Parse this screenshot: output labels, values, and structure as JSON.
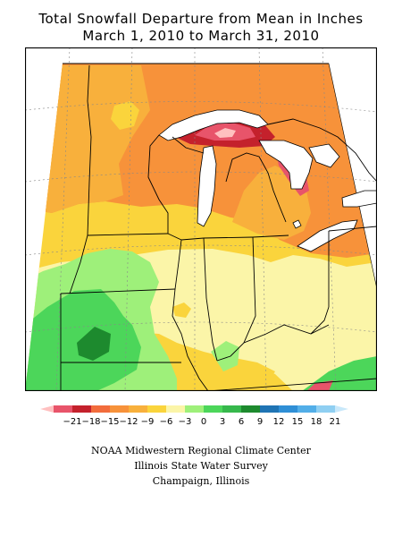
{
  "title": {
    "line1": "Total Snowfall Departure from Mean in Inches",
    "line2": "March 1, 2010 to March 31, 2010"
  },
  "legend": {
    "ticks": [
      "-21",
      "-18",
      "-15",
      "-12",
      "-9",
      "-6",
      "-3",
      "0",
      "3",
      "6",
      "9",
      "12",
      "15",
      "18",
      "21"
    ],
    "colors": [
      "#ffc0c0",
      "#e8546a",
      "#c4212c",
      "#f26c3c",
      "#f7923a",
      "#f8b03c",
      "#fad43c",
      "#fbf5a8",
      "#9ef07a",
      "#4cd65a",
      "#36b84c",
      "#1d8a2e",
      "#1f74b4",
      "#2f8fd6",
      "#52aee8",
      "#8fcff2",
      "#c8e8fa"
    ]
  },
  "map": {
    "region": "Midwestern United States",
    "colors": {
      "pink": "#e8546a",
      "red": "#c4212c",
      "orange": "#f7923a",
      "light_orange": "#f8b03c",
      "yellow": "#fad43c",
      "pale_yellow": "#fbf5a8",
      "light_green": "#9ef07a",
      "green": "#4cd65a",
      "dark_green": "#1d8a2e"
    }
  },
  "credits": {
    "line1": "NOAA Midwestern Regional Climate Center",
    "line2": "Illinois State Water Survey",
    "line3": "Champaign, Illinois"
  }
}
